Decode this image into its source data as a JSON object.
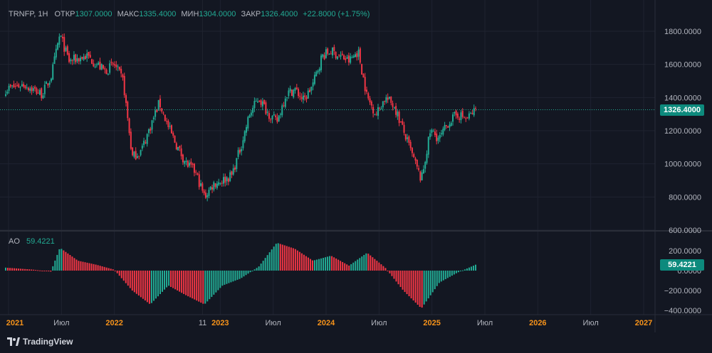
{
  "header": {
    "symbol": "TRNFP, 1H",
    "open_label": "ОТКР",
    "open_value": "1307.0000",
    "high_label": "МАКС",
    "high_value": "1335.4000",
    "low_label": "МИН",
    "low_value": "1304.0000",
    "close_label": "ЗАКР",
    "close_value": "1326.4000",
    "change": "+22.8000 (+1.75%)"
  },
  "price_axis_labels": [
    "1800.0000",
    "1600.0000",
    "1400.0000",
    "1200.0000",
    "1000.0000",
    "800.0000",
    "600.0000"
  ],
  "last_price_tag": "1326.4000",
  "indicator": {
    "name": "AO",
    "value": "59.4221",
    "axis_labels": [
      "200.0000",
      "0.0000",
      "−200.0000",
      "−400.0000"
    ],
    "value_tag": "59.4221"
  },
  "time_axis_labels": [
    "2021",
    "Июл",
    "2022",
    "11",
    "2023",
    "Июл",
    "2024",
    "Июл",
    "2025",
    "Июл",
    "2026",
    "Июл",
    "2027"
  ],
  "branding": {
    "name": "TradingView"
  },
  "colors": {
    "background": "#131722",
    "up": "#22ab94",
    "down": "#f23645",
    "axis_text": "#b2b5be",
    "accent_year": "#f7931a"
  },
  "chart_data": [
    {
      "type": "candlestick",
      "title": "TRNFP, 1H",
      "ylim": [
        600,
        1850
      ],
      "x_range": [
        "2021-01",
        "2027-03"
      ],
      "last_price": 1326.4,
      "ohlc_last": {
        "open": 1307.0,
        "high": 1335.4,
        "low": 1304.0,
        "close": 1326.4
      },
      "series": [
        {
          "name": "close (approx.)",
          "x": [
            "2021-01",
            "2021-03",
            "2021-05",
            "2021-06",
            "2021-07",
            "2021-08",
            "2021-10",
            "2021-12",
            "2022-01",
            "2022-02",
            "2022-03",
            "2022-04",
            "2022-06",
            "2022-07",
            "2022-08",
            "2022-09",
            "2022-10",
            "2022-11",
            "2022-12",
            "2023-01",
            "2023-02",
            "2023-03",
            "2023-04",
            "2023-05",
            "2023-06",
            "2023-07",
            "2023-08",
            "2023-09",
            "2023-10",
            "2023-11",
            "2023-12",
            "2024-01",
            "2024-02",
            "2024-03",
            "2024-04",
            "2024-05",
            "2024-06",
            "2024-07",
            "2024-08",
            "2024-09",
            "2024-10",
            "2024-11",
            "2024-12",
            "2025-01",
            "2025-02",
            "2025-03",
            "2025-04",
            "2025-05"
          ],
          "values": [
            1450,
            1480,
            1420,
            1520,
            1780,
            1620,
            1650,
            1560,
            1600,
            1500,
            1040,
            1080,
            1370,
            1220,
            1100,
            1000,
            950,
            800,
            880,
            900,
            930,
            1100,
            1300,
            1400,
            1310,
            1250,
            1420,
            1450,
            1380,
            1480,
            1650,
            1680,
            1650,
            1620,
            1680,
            1400,
            1300,
            1400,
            1350,
            1200,
            1050,
            900,
            1200,
            1150,
            1250,
            1300,
            1270,
            1326
          ]
        }
      ]
    },
    {
      "type": "bar",
      "title": "AO",
      "ylim": [
        -430,
        280
      ],
      "last_value": 59.4221,
      "series": [
        {
          "name": "AO (approx.)",
          "x": [
            "2021-01",
            "2021-04",
            "2021-06",
            "2021-07",
            "2021-09",
            "2021-11",
            "2022-01",
            "2022-03",
            "2022-05",
            "2022-07",
            "2022-09",
            "2022-11",
            "2023-01",
            "2023-03",
            "2023-05",
            "2023-07",
            "2023-09",
            "2023-11",
            "2024-01",
            "2024-03",
            "2024-05",
            "2024-07",
            "2024-09",
            "2024-11",
            "2025-01",
            "2025-03",
            "2025-05"
          ],
          "values": [
            30,
            10,
            -10,
            230,
            100,
            60,
            10,
            -200,
            -340,
            -150,
            -250,
            -340,
            -150,
            -80,
            40,
            280,
            220,
            100,
            150,
            50,
            180,
            30,
            -200,
            -380,
            -120,
            -20,
            59.4
          ]
        }
      ]
    }
  ]
}
